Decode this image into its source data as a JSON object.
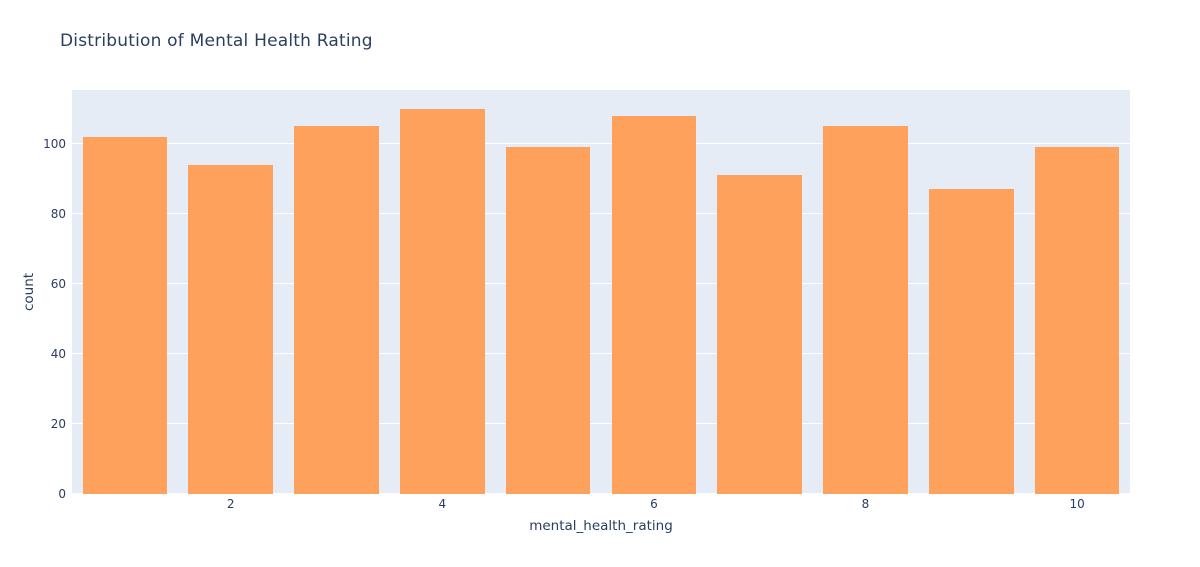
{
  "chart_data": {
    "type": "bar",
    "title": "Distribution of Mental Health Rating",
    "xlabel": "mental_health_rating",
    "ylabel": "count",
    "categories": [
      1,
      2,
      3,
      4,
      5,
      6,
      7,
      8,
      9,
      10
    ],
    "values": [
      102,
      94,
      105,
      110,
      99,
      108,
      91,
      105,
      87,
      99
    ],
    "ylim": [
      0,
      115.4
    ],
    "yticks": [
      0,
      20,
      40,
      60,
      80,
      100
    ],
    "xticks": [
      2,
      4,
      6,
      8,
      10
    ],
    "legend_position": "none",
    "grid": "horizontal",
    "colors": {
      "bar": "#FEA15C",
      "plot_background": "#E5ECF6",
      "gridline": "#FFFFFF",
      "text": "#2A3F5F",
      "page_background": "#FFFFFF"
    }
  }
}
